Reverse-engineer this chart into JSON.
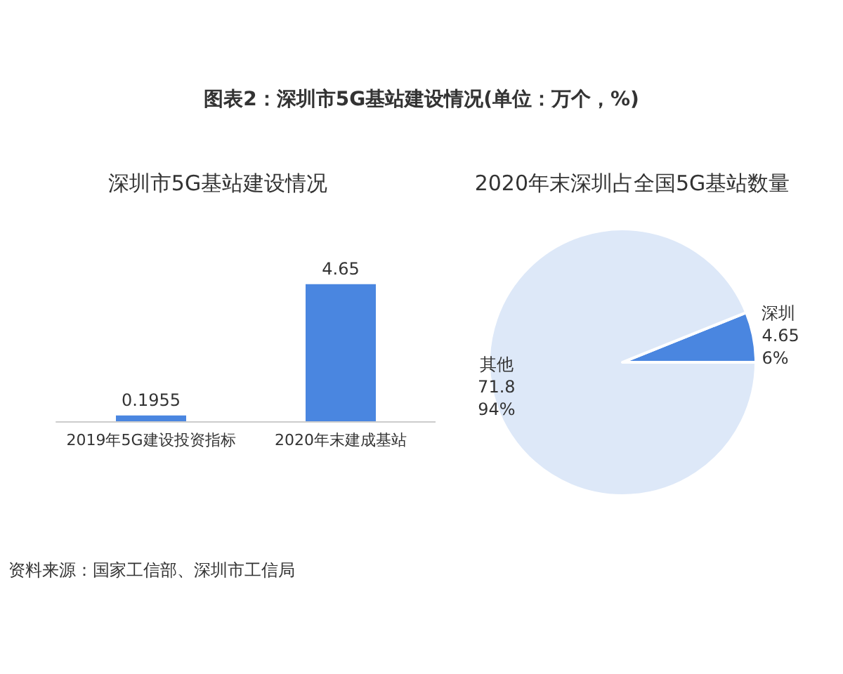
{
  "chart_data": [
    {
      "type": "bar",
      "title": "图表2：深圳市5G基站建设情况(单位：万个，%)",
      "subtitle": "深圳市5G基站建设情况",
      "categories": [
        "2019年5G建设投资指标",
        "2020年末建成基站"
      ],
      "values": [
        0.1955,
        4.65
      ],
      "color": "#4a86e0",
      "data_labels": true,
      "annotations": [
        "资料来源：国家工信部、深圳市工信局"
      ]
    },
    {
      "type": "pie",
      "title": "2020年末深圳占全国5G基站数量",
      "categories": [
        "深圳",
        "其他"
      ],
      "values": [
        4.65,
        71.8
      ],
      "colors": [
        "#4a86e0",
        "#dde8f8"
      ],
      "value_labels": [
        "4.65\n6%",
        "71.8\n94%"
      ]
    }
  ]
}
